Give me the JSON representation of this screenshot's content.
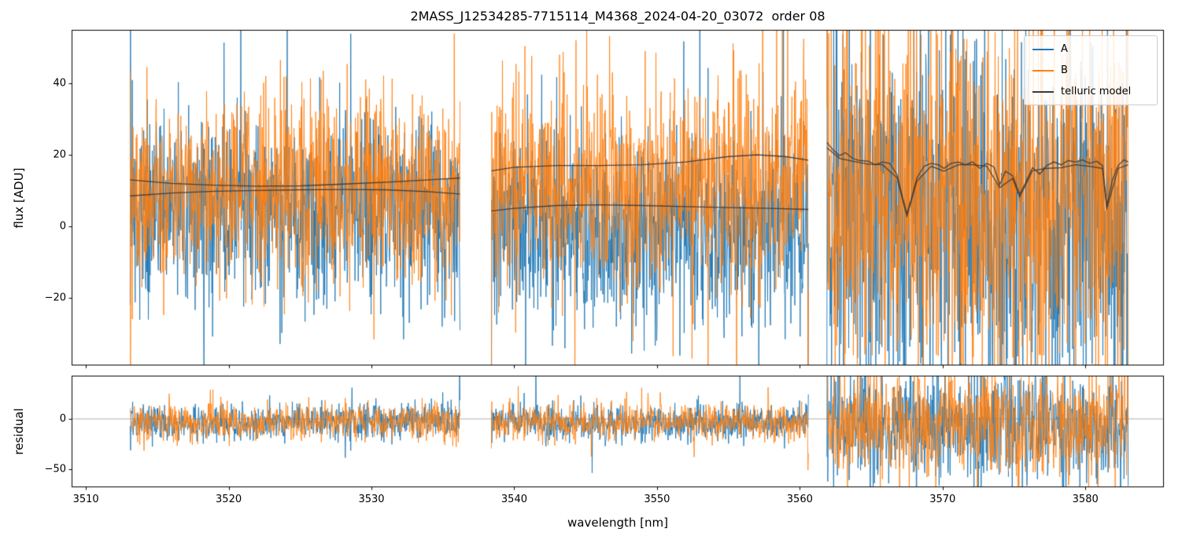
{
  "figure": {
    "background": "#ffffff",
    "border_color": "#000000"
  },
  "chart_data": {
    "type": "line",
    "title": "2MASS_J12534285-7715114_M4368_2024-04-20_03072  order 08",
    "xlabel": "wavelength [nm]",
    "xlim": [
      3509,
      3585.5
    ],
    "grid": false,
    "legend": {
      "position": "upper right",
      "entries": [
        "A",
        "B",
        "telluric model"
      ]
    },
    "xticks": [
      {
        "v": 3510,
        "label": "3510"
      },
      {
        "v": 3520,
        "label": "3520"
      },
      {
        "v": 3530,
        "label": "3530"
      },
      {
        "v": 3540,
        "label": "3540"
      },
      {
        "v": 3550,
        "label": "3550"
      },
      {
        "v": 3560,
        "label": "3560"
      },
      {
        "v": 3570,
        "label": "3570"
      },
      {
        "v": 3580,
        "label": "3580"
      }
    ],
    "series": [
      {
        "name": "A",
        "color": "#1f77b4"
      },
      {
        "name": "B",
        "color": "#ff7f0e"
      },
      {
        "name": "telluric model",
        "color": "#3a3a3a"
      }
    ],
    "panels": [
      {
        "name": "flux",
        "ylabel": "flux [ADU]",
        "ylim": [
          -39,
          55
        ],
        "yticks": [
          {
            "v": 40,
            "label": "40"
          },
          {
            "v": 20,
            "label": "20"
          },
          {
            "v": 0,
            "label": "0"
          },
          {
            "v": -20,
            "label": "−20"
          }
        ],
        "zero_line": false,
        "noise_segments": [
          {
            "x0": 3513.1,
            "x1": 3536.2,
            "A": {
              "mean": 5,
              "sigma": 13
            },
            "B": {
              "mean": 11,
              "sigma": 13
            }
          },
          {
            "x0": 3538.4,
            "x1": 3560.6,
            "A": {
              "mean": -1,
              "sigma": 14
            },
            "B": {
              "mean": 13,
              "sigma": 15
            }
          },
          {
            "x0": 3561.9,
            "x1": 3583.0,
            "A": {
              "mean": 2,
              "sigma": 26
            },
            "B": {
              "mean": 10,
              "sigma": 26
            }
          }
        ],
        "telluric_model": {
          "segments": [
            {
              "upper": [
                [
                  3513.1,
                  13.0
                ],
                [
                  3516,
                  12.0
                ],
                [
                  3519,
                  11.5
                ],
                [
                  3522,
                  11.2
                ],
                [
                  3525,
                  11.3
                ],
                [
                  3528,
                  11.8
                ],
                [
                  3531,
                  12.3
                ],
                [
                  3534,
                  13.0
                ],
                [
                  3536.2,
                  13.5
                ]
              ],
              "lower": [
                [
                  3513.1,
                  8.5
                ],
                [
                  3516,
                  9.3
                ],
                [
                  3519,
                  9.8
                ],
                [
                  3522,
                  10.0
                ],
                [
                  3525,
                  10.2
                ],
                [
                  3528,
                  10.3
                ],
                [
                  3531,
                  10.2
                ],
                [
                  3534,
                  9.7
                ],
                [
                  3536.2,
                  9.0
                ]
              ]
            },
            {
              "upper": [
                [
                  3538.4,
                  15.5
                ],
                [
                  3540,
                  16.5
                ],
                [
                  3543,
                  17.0
                ],
                [
                  3546,
                  17.0
                ],
                [
                  3549,
                  17.2
                ],
                [
                  3552,
                  18.0
                ],
                [
                  3555,
                  19.5
                ],
                [
                  3557,
                  20.0
                ],
                [
                  3559,
                  19.5
                ],
                [
                  3560.6,
                  18.5
                ]
              ],
              "lower": [
                [
                  3538.4,
                  4.3
                ],
                [
                  3540,
                  5.0
                ],
                [
                  3543,
                  5.8
                ],
                [
                  3546,
                  6.0
                ],
                [
                  3549,
                  5.8
                ],
                [
                  3552,
                  5.5
                ],
                [
                  3555,
                  5.2
                ],
                [
                  3558,
                  5.0
                ],
                [
                  3560.6,
                  4.7
                ]
              ]
            },
            {
              "upper": [
                [
                  3561.9,
                  23.5
                ],
                [
                  3562.3,
                  21.5
                ],
                [
                  3562.8,
                  19.8
                ],
                [
                  3563.2,
                  20.6
                ],
                [
                  3563.7,
                  19.0
                ],
                [
                  3564.2,
                  18.4
                ],
                [
                  3564.8,
                  18.2
                ],
                [
                  3565.3,
                  17.2
                ],
                [
                  3565.8,
                  18.0
                ],
                [
                  3566.3,
                  17.6
                ],
                [
                  3566.8,
                  14.5
                ],
                [
                  3567.2,
                  8.0
                ],
                [
                  3567.5,
                  3.5
                ],
                [
                  3567.8,
                  7.5
                ],
                [
                  3568.2,
                  13.5
                ],
                [
                  3568.7,
                  16.8
                ],
                [
                  3569.2,
                  17.6
                ],
                [
                  3569.7,
                  17.2
                ],
                [
                  3570.1,
                  16.2
                ],
                [
                  3570.6,
                  17.6
                ],
                [
                  3571.1,
                  18.0
                ],
                [
                  3571.6,
                  17.2
                ],
                [
                  3572.1,
                  18.0
                ],
                [
                  3572.6,
                  16.2
                ],
                [
                  3573.1,
                  17.6
                ],
                [
                  3573.6,
                  16.6
                ],
                [
                  3574.0,
                  11.6
                ],
                [
                  3574.4,
                  15.4
                ],
                [
                  3574.9,
                  14.2
                ],
                [
                  3575.4,
                  9.0
                ],
                [
                  3575.8,
                  12.0
                ],
                [
                  3576.3,
                  16.4
                ],
                [
                  3576.8,
                  14.6
                ],
                [
                  3577.3,
                  17.0
                ],
                [
                  3577.8,
                  18.0
                ],
                [
                  3578.3,
                  17.2
                ],
                [
                  3578.8,
                  18.4
                ],
                [
                  3579.3,
                  18.0
                ],
                [
                  3579.8,
                  18.6
                ],
                [
                  3580.3,
                  17.6
                ],
                [
                  3580.8,
                  18.2
                ],
                [
                  3581.2,
                  17.0
                ],
                [
                  3581.5,
                  5.8
                ],
                [
                  3581.9,
                  13.0
                ],
                [
                  3582.3,
                  17.0
                ],
                [
                  3582.7,
                  18.6
                ],
                [
                  3583.0,
                  18.0
                ]
              ],
              "lower": [
                [
                  3561.9,
                  22.0
                ],
                [
                  3562.8,
                  19.0
                ],
                [
                  3563.7,
                  18.2
                ],
                [
                  3564.8,
                  17.4
                ],
                [
                  3565.8,
                  17.2
                ],
                [
                  3566.8,
                  13.6
                ],
                [
                  3567.5,
                  2.8
                ],
                [
                  3568.2,
                  12.6
                ],
                [
                  3569.2,
                  16.8
                ],
                [
                  3570.1,
                  15.4
                ],
                [
                  3571.1,
                  17.2
                ],
                [
                  3572.1,
                  17.2
                ],
                [
                  3573.1,
                  16.8
                ],
                [
                  3574.0,
                  10.8
                ],
                [
                  3574.9,
                  13.4
                ],
                [
                  3575.4,
                  8.2
                ],
                [
                  3576.3,
                  15.6
                ],
                [
                  3577.3,
                  16.2
                ],
                [
                  3578.3,
                  16.4
                ],
                [
                  3579.3,
                  17.2
                ],
                [
                  3580.3,
                  16.8
                ],
                [
                  3581.2,
                  16.2
                ],
                [
                  3581.5,
                  5.0
                ],
                [
                  3582.3,
                  16.2
                ],
                [
                  3583.0,
                  17.2
                ]
              ]
            }
          ]
        }
      },
      {
        "name": "residual",
        "ylabel": "residual",
        "ylim": [
          -68,
          43
        ],
        "yticks": [
          {
            "v": 0,
            "label": "0"
          },
          {
            "v": -50,
            "label": "−50"
          }
        ],
        "zero_line": true,
        "noise_segments": [
          {
            "x0": 3513.1,
            "x1": 3536.2,
            "A": {
              "mean": -4,
              "sigma": 9
            },
            "B": {
              "mean": -3,
              "sigma": 9
            }
          },
          {
            "x0": 3538.4,
            "x1": 3560.6,
            "A": {
              "mean": -4,
              "sigma": 9
            },
            "B": {
              "mean": -3,
              "sigma": 9
            }
          },
          {
            "x0": 3561.9,
            "x1": 3583.0,
            "A": {
              "mean": -7,
              "sigma": 28
            },
            "B": {
              "mean": -5,
              "sigma": 28
            }
          }
        ]
      }
    ]
  }
}
